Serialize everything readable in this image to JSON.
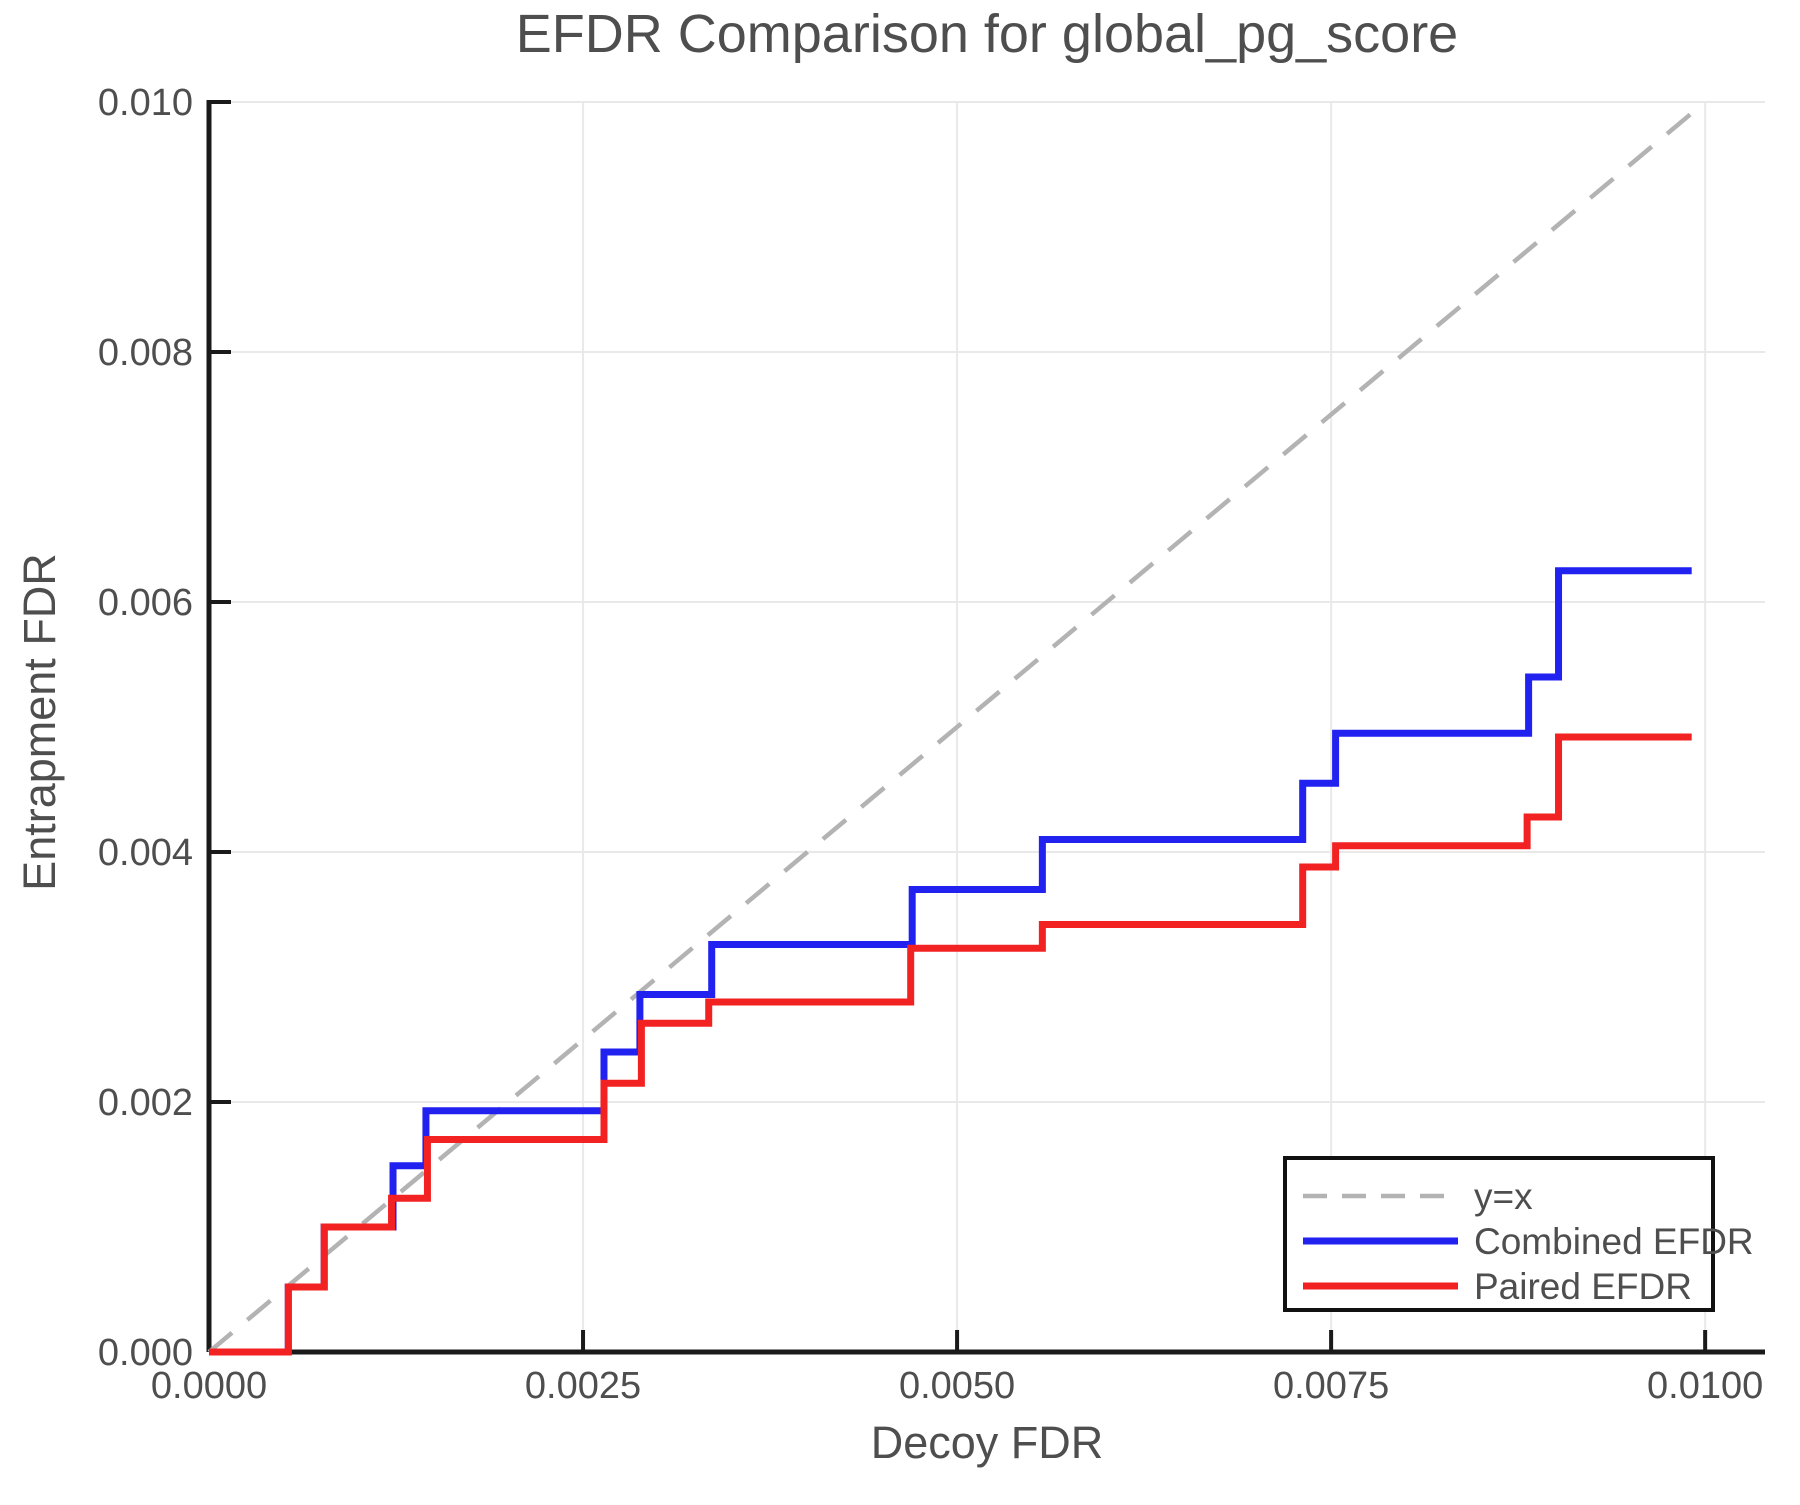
{
  "title": "EFDR Comparison for global_pg_score",
  "legend": {
    "entries": [
      "y=x",
      "Combined EFDR",
      "Paired EFDR"
    ]
  },
  "colors": {
    "combined_efdr": "#2121f0",
    "paired_efdr": "#f32222",
    "reference_line": "#b3b3b3",
    "gridline": "#e9e9e9",
    "text": "#4e4e4e",
    "spine": "#1a1a1a",
    "background": "#ffffff"
  },
  "chart_data": {
    "type": "line",
    "subtype": "step-post",
    "title": "EFDR Comparison for global_pg_score",
    "xlabel": "Decoy FDR",
    "ylabel": "Entrapment FDR",
    "xlim": [
      0,
      0.0104
    ],
    "ylim": [
      0,
      0.01
    ],
    "grid": true,
    "legend_position": "lower right",
    "x_ticks": [
      {
        "value": 0.0,
        "label": "0.0000"
      },
      {
        "value": 0.0025,
        "label": "0.0025"
      },
      {
        "value": 0.005,
        "label": "0.0050"
      },
      {
        "value": 0.0075,
        "label": "0.0075"
      },
      {
        "value": 0.01,
        "label": "0.0100"
      }
    ],
    "y_ticks": [
      {
        "value": 0.0,
        "label": "0.000"
      },
      {
        "value": 0.002,
        "label": "0.002"
      },
      {
        "value": 0.004,
        "label": "0.004"
      },
      {
        "value": 0.006,
        "label": "0.006"
      },
      {
        "value": 0.008,
        "label": "0.008"
      },
      {
        "value": 0.01,
        "label": "0.010"
      }
    ],
    "reference_line": {
      "name": "y=x",
      "from": [
        0,
        0
      ],
      "to": [
        0.01,
        0.01
      ],
      "style": "dashed",
      "color": "#b3b3b3"
    },
    "series": [
      {
        "name": "Combined EFDR",
        "color": "#2121f0",
        "start": [
          0,
          0
        ],
        "x_end": 0.00991,
        "steps": [
          [
            0.00053,
            0.00052
          ],
          [
            0.00077,
            0.001
          ],
          [
            0.00123,
            0.00149
          ],
          [
            0.00145,
            0.00193
          ],
          [
            0.00264,
            0.0024
          ],
          [
            0.00288,
            0.00286
          ],
          [
            0.00336,
            0.00326
          ],
          [
            0.0047,
            0.0037
          ],
          [
            0.00557,
            0.0041
          ],
          [
            0.00731,
            0.00455
          ],
          [
            0.00753,
            0.00495
          ],
          [
            0.00882,
            0.0054
          ],
          [
            0.00902,
            0.00625
          ]
        ]
      },
      {
        "name": "Paired EFDR",
        "color": "#f32222",
        "start": [
          0,
          0
        ],
        "x_end": 0.00991,
        "steps": [
          [
            0.00053,
            0.00052
          ],
          [
            0.00077,
            0.001
          ],
          [
            0.00122,
            0.00123
          ],
          [
            0.00146,
            0.0017
          ],
          [
            0.00264,
            0.00215
          ],
          [
            0.00289,
            0.00263
          ],
          [
            0.00334,
            0.0028
          ],
          [
            0.00469,
            0.00323
          ],
          [
            0.00557,
            0.00342
          ],
          [
            0.00731,
            0.00388
          ],
          [
            0.00753,
            0.00405
          ],
          [
            0.00881,
            0.00428
          ],
          [
            0.00902,
            0.00492
          ]
        ]
      }
    ]
  }
}
